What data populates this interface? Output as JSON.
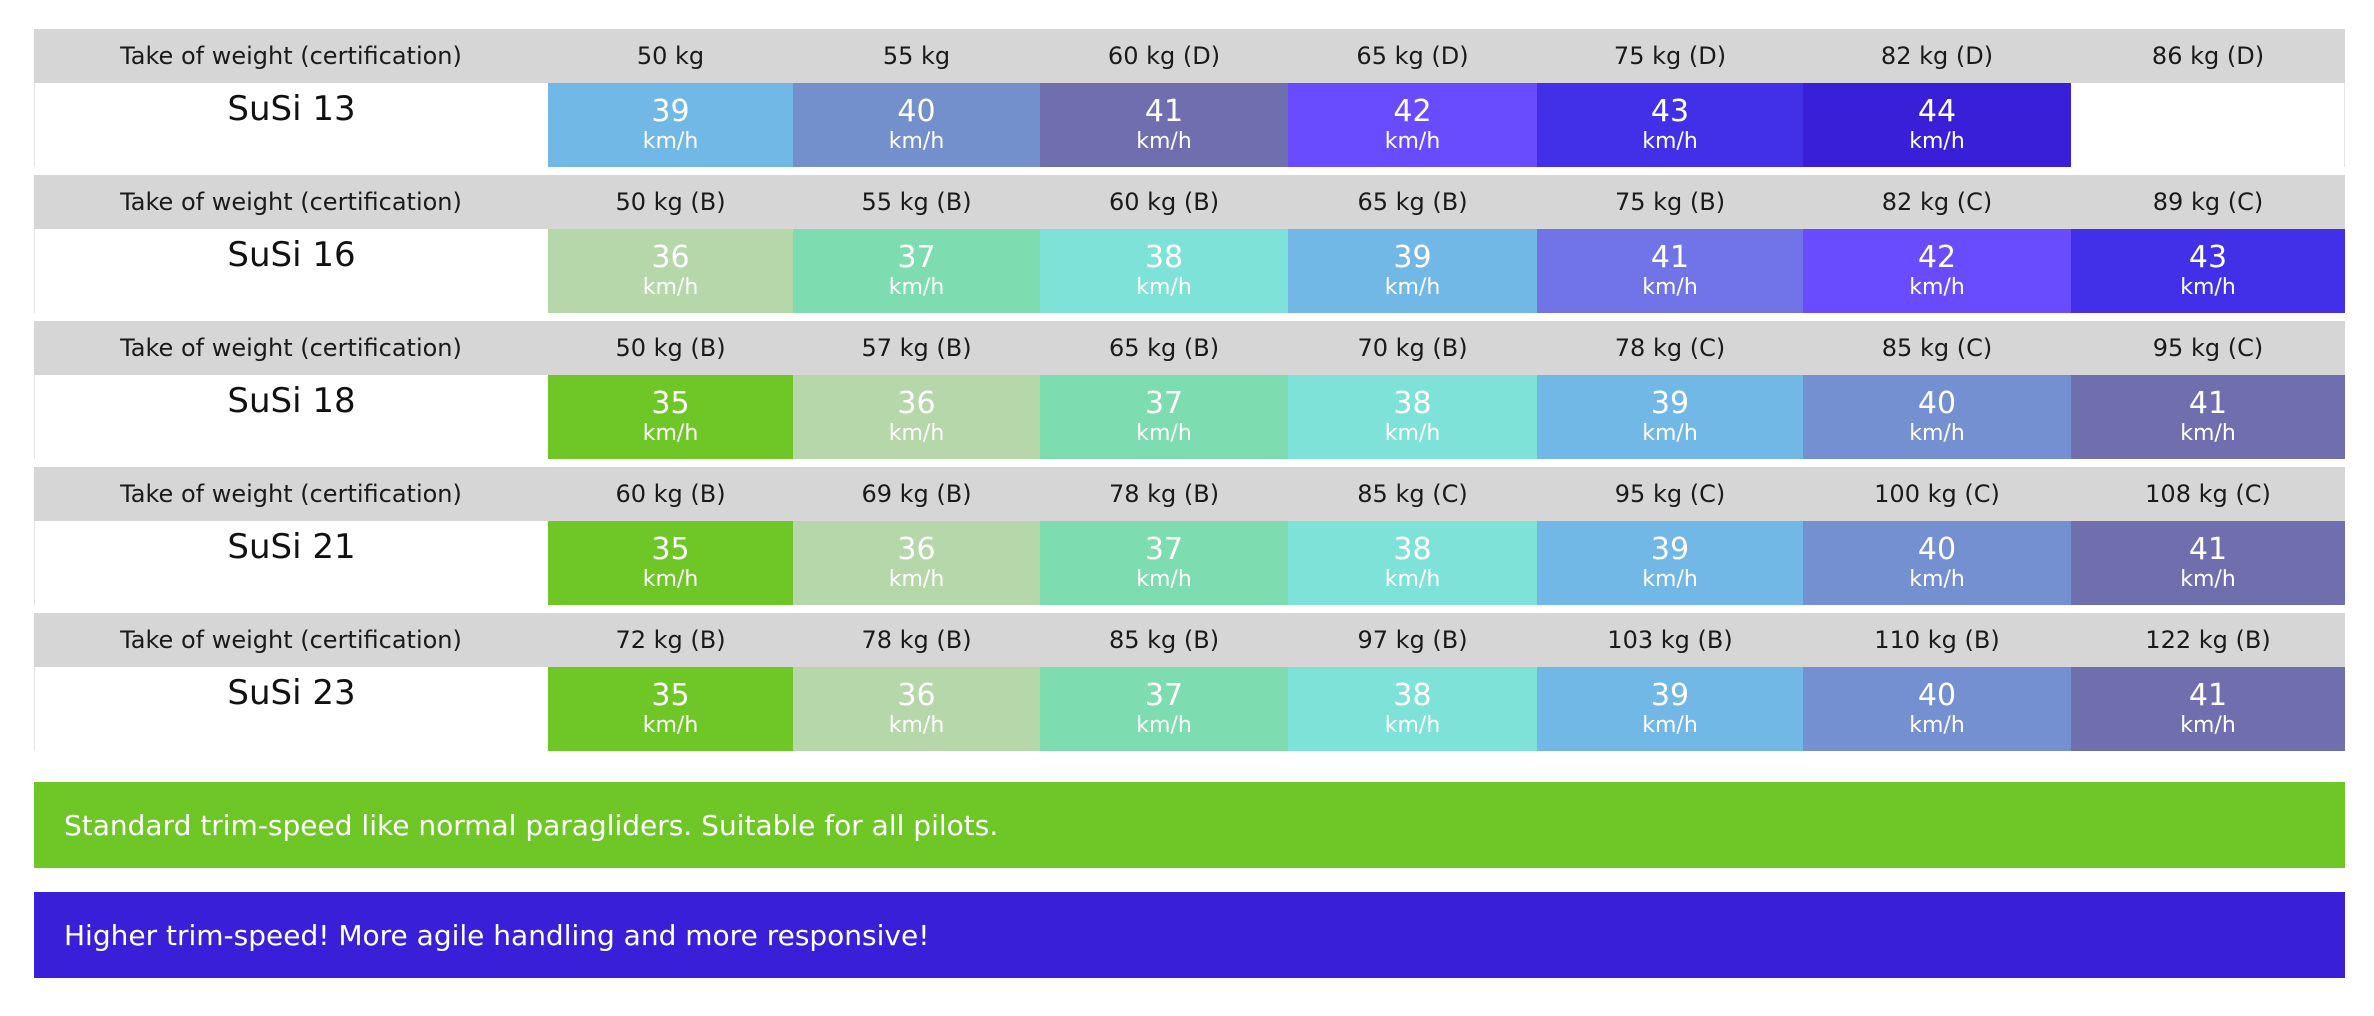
{
  "colors": {
    "c35": "#6fc627",
    "c36": "#b6d7aa",
    "c37": "#7dddb0",
    "c38": "#7fe2d8",
    "c39": "#72b8e6",
    "c40": "#7490d0",
    "c41": "#6f6fb0",
    "c42": "#6a4cff",
    "c43": "#4230e8",
    "c44": "#3a1fd8",
    "c40_susi13": "#738fcc",
    "c41_susi16": "#7174e6"
  },
  "unit": "km/h",
  "weight_label": "Take of weight (certification)",
  "models": [
    {
      "name": "SuSi 13",
      "weights": [
        "50 kg",
        "55 kg",
        "60 kg (D)",
        "65 kg (D)",
        "75 kg (D)",
        "82 kg (D)",
        "86 kg (D)"
      ],
      "speeds": [
        {
          "value": "39",
          "color": "#72b8e6"
        },
        {
          "value": "40",
          "color": "#738fcc"
        },
        {
          "value": "41",
          "color": "#6f6fb0"
        },
        {
          "value": "42",
          "color": "#6a4cff"
        },
        {
          "value": "43",
          "color": "#4230e8"
        },
        {
          "value": "44",
          "color": "#3a1fd8"
        },
        {
          "value": "",
          "color": "#ffffff"
        }
      ]
    },
    {
      "name": "SuSi 16",
      "weights": [
        "50 kg (B)",
        "55 kg (B)",
        "60 kg (B)",
        "65 kg (B)",
        "75 kg (B)",
        "82 kg (C)",
        "89 kg (C)"
      ],
      "speeds": [
        {
          "value": "36",
          "color": "#b6d7aa"
        },
        {
          "value": "37",
          "color": "#7dddb0"
        },
        {
          "value": "38",
          "color": "#7fe2d8"
        },
        {
          "value": "39",
          "color": "#72b8e6"
        },
        {
          "value": "41",
          "color": "#7174e6"
        },
        {
          "value": "42",
          "color": "#6a4cff"
        },
        {
          "value": "43",
          "color": "#4230e8"
        }
      ]
    },
    {
      "name": "SuSi 18",
      "weights": [
        "50 kg (B)",
        "57 kg (B)",
        "65 kg (B)",
        "70 kg (B)",
        "78 kg (C)",
        "85 kg (C)",
        "95 kg (C)"
      ],
      "speeds": [
        {
          "value": "35",
          "color": "#6fc627"
        },
        {
          "value": "36",
          "color": "#b6d7aa"
        },
        {
          "value": "37",
          "color": "#7dddb0"
        },
        {
          "value": "38",
          "color": "#7fe2d8"
        },
        {
          "value": "39",
          "color": "#72b8e6"
        },
        {
          "value": "40",
          "color": "#7490d0"
        },
        {
          "value": "41",
          "color": "#6f6fb0"
        }
      ]
    },
    {
      "name": "SuSi 21",
      "weights": [
        "60 kg (B)",
        "69 kg (B)",
        "78 kg (B)",
        "85 kg (C)",
        "95 kg (C)",
        "100 kg (C)",
        "108 kg (C)"
      ],
      "speeds": [
        {
          "value": "35",
          "color": "#6fc627"
        },
        {
          "value": "36",
          "color": "#b6d7aa"
        },
        {
          "value": "37",
          "color": "#7dddb0"
        },
        {
          "value": "38",
          "color": "#7fe2d8"
        },
        {
          "value": "39",
          "color": "#72b8e6"
        },
        {
          "value": "40",
          "color": "#7490d0"
        },
        {
          "value": "41",
          "color": "#6f6fb0"
        }
      ]
    },
    {
      "name": "SuSi 23",
      "weights": [
        "72 kg (B)",
        "78 kg (B)",
        "85 kg (B)",
        "97 kg (B)",
        "103 kg (B)",
        "110 kg (B)",
        "122 kg (B)"
      ],
      "speeds": [
        {
          "value": "35",
          "color": "#6fc627"
        },
        {
          "value": "36",
          "color": "#b6d7aa"
        },
        {
          "value": "37",
          "color": "#7dddb0"
        },
        {
          "value": "38",
          "color": "#7fe2d8"
        },
        {
          "value": "39",
          "color": "#72b8e6"
        },
        {
          "value": "40",
          "color": "#7490d0"
        },
        {
          "value": "41",
          "color": "#6f6fb0"
        }
      ]
    }
  ],
  "legend": [
    {
      "text": "Standard trim-speed like normal paragliders. Suitable for all pilots.",
      "color": "#6fc627"
    },
    {
      "text": "Higher trim-speed! More agile handling and more responsive!",
      "color": "#3a1fd8"
    }
  ]
}
